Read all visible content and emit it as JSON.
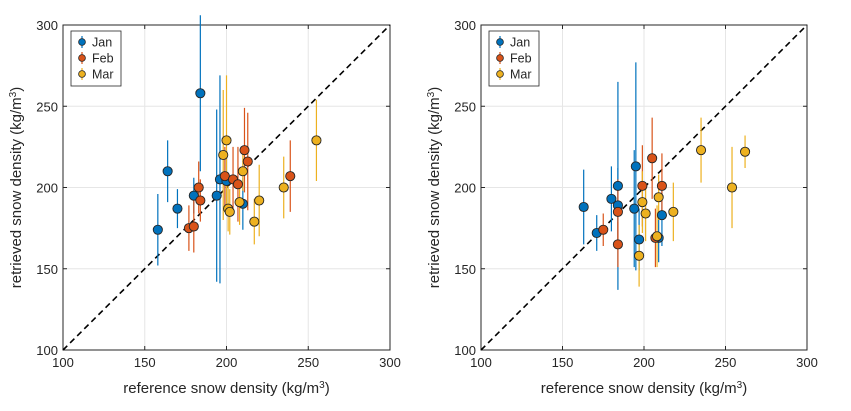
{
  "chart_data": [
    {
      "type": "scatter",
      "title": "",
      "xlabel": "reference snow density (kg/m3)",
      "ylabel": "retrieved snow density (kg/m3)",
      "xlim": [
        100,
        300
      ],
      "ylim": [
        100,
        300
      ],
      "xticks": [
        100,
        150,
        200,
        250,
        300
      ],
      "yticks": [
        100,
        150,
        200,
        250,
        300
      ],
      "grid": true,
      "one_to_one_line": true,
      "legend": "top-left",
      "series": [
        {
          "name": "Jan",
          "color": "#0072BD",
          "points": [
            {
              "x": 158,
              "y": 174,
              "err": 22
            },
            {
              "x": 164,
              "y": 210,
              "err": 19
            },
            {
              "x": 170,
              "y": 187,
              "err": 12
            },
            {
              "x": 180,
              "y": 195,
              "err": 11
            },
            {
              "x": 184,
              "y": 258,
              "err": 48
            },
            {
              "x": 194,
              "y": 195,
              "err": 53
            },
            {
              "x": 196,
              "y": 205,
              "err": 64
            },
            {
              "x": 200,
              "y": 204,
              "err": 19
            },
            {
              "x": 210,
              "y": 190,
              "err": 16
            }
          ]
        },
        {
          "name": "Feb",
          "color": "#D95319",
          "points": [
            {
              "x": 177,
              "y": 175,
              "err": 14
            },
            {
              "x": 180,
              "y": 176,
              "err": 16
            },
            {
              "x": 183,
              "y": 200,
              "err": 16
            },
            {
              "x": 184,
              "y": 192,
              "err": 13
            },
            {
              "x": 199,
              "y": 207,
              "err": 18
            },
            {
              "x": 204,
              "y": 205,
              "err": 20
            },
            {
              "x": 207,
              "y": 202,
              "err": 23
            },
            {
              "x": 211,
              "y": 223,
              "err": 26
            },
            {
              "x": 213,
              "y": 216,
              "err": 30
            },
            {
              "x": 239,
              "y": 207,
              "err": 22
            }
          ]
        },
        {
          "name": "Mar",
          "color": "#EDB120",
          "points": [
            {
              "x": 198,
              "y": 220,
              "err": 40
            },
            {
              "x": 200,
              "y": 229,
              "err": 40
            },
            {
              "x": 201,
              "y": 187,
              "err": 14
            },
            {
              "x": 202,
              "y": 185,
              "err": 14
            },
            {
              "x": 208,
              "y": 191,
              "err": 14
            },
            {
              "x": 210,
              "y": 210,
              "err": 12
            },
            {
              "x": 217,
              "y": 179,
              "err": 14
            },
            {
              "x": 220,
              "y": 192,
              "err": 22
            },
            {
              "x": 235,
              "y": 200,
              "err": 19
            },
            {
              "x": 255,
              "y": 229,
              "err": 25
            }
          ]
        }
      ]
    },
    {
      "type": "scatter",
      "title": "",
      "xlabel": "reference snow density (kg/m3)",
      "ylabel": "retrieved snow density (kg/m3)",
      "xlim": [
        100,
        300
      ],
      "ylim": [
        100,
        300
      ],
      "xticks": [
        100,
        150,
        200,
        250,
        300
      ],
      "yticks": [
        100,
        150,
        200,
        250,
        300
      ],
      "grid": true,
      "one_to_one_line": true,
      "legend": "top-left",
      "series": [
        {
          "name": "Jan",
          "color": "#0072BD",
          "points": [
            {
              "x": 163,
              "y": 188,
              "err": 23
            },
            {
              "x": 171,
              "y": 172,
              "err": 11
            },
            {
              "x": 180,
              "y": 193,
              "err": 20
            },
            {
              "x": 184,
              "y": 201,
              "err": 64
            },
            {
              "x": 184,
              "y": 189,
              "err": 23
            },
            {
              "x": 194,
              "y": 187,
              "err": 36
            },
            {
              "x": 195,
              "y": 213,
              "err": 64
            },
            {
              "x": 197,
              "y": 168,
              "err": 19
            },
            {
              "x": 209,
              "y": 169,
              "err": 15
            },
            {
              "x": 211,
              "y": 183,
              "err": 19
            }
          ]
        },
        {
          "name": "Feb",
          "color": "#D95319",
          "points": [
            {
              "x": 175,
              "y": 174,
              "err": 10
            },
            {
              "x": 184,
              "y": 165,
              "err": 14
            },
            {
              "x": 184,
              "y": 185,
              "err": 20
            },
            {
              "x": 199,
              "y": 201,
              "err": 25
            },
            {
              "x": 205,
              "y": 218,
              "err": 25
            },
            {
              "x": 207,
              "y": 169,
              "err": 18
            },
            {
              "x": 211,
              "y": 201,
              "err": 20
            }
          ]
        },
        {
          "name": "Mar",
          "color": "#EDB120",
          "points": [
            {
              "x": 197,
              "y": 158,
              "err": 19
            },
            {
              "x": 199,
              "y": 191,
              "err": 19
            },
            {
              "x": 201,
              "y": 184,
              "err": 17
            },
            {
              "x": 208,
              "y": 170,
              "err": 19
            },
            {
              "x": 209,
              "y": 194,
              "err": 14
            },
            {
              "x": 218,
              "y": 185,
              "err": 18
            },
            {
              "x": 235,
              "y": 223,
              "err": 20
            },
            {
              "x": 254,
              "y": 200,
              "err": 25
            },
            {
              "x": 262,
              "y": 222,
              "err": 10
            }
          ]
        }
      ]
    }
  ]
}
